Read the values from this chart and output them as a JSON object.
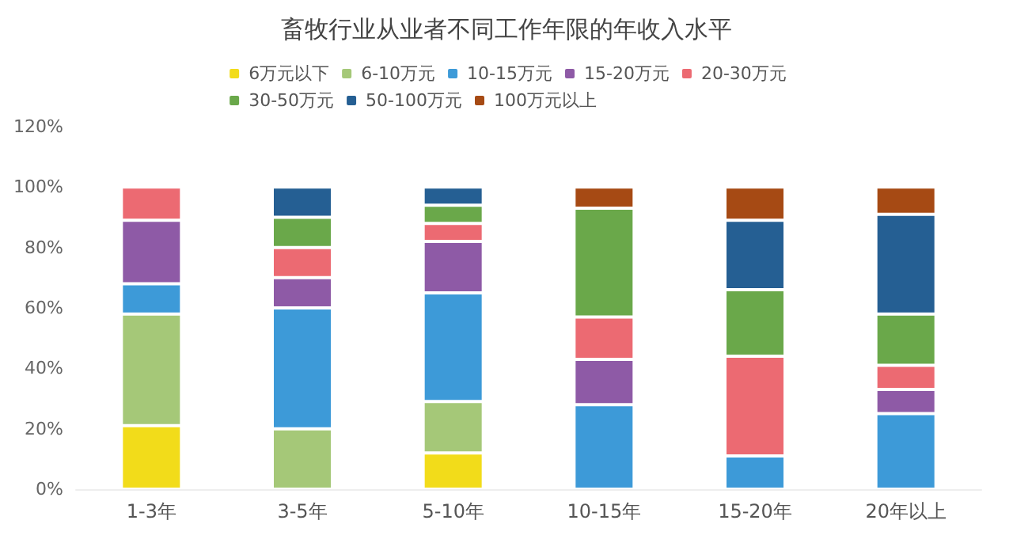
{
  "chart_data": {
    "type": "bar",
    "title": "畜牧行业从业者不同工作年限的年收入水平",
    "stacked": true,
    "legend": "top",
    "grid": false,
    "categories": [
      "1-3年",
      "3-5年",
      "5-10年",
      "10-15年",
      "15-20年",
      "20年以上"
    ],
    "ylim": [
      0,
      120
    ],
    "yticks": [
      {
        "value": 0,
        "label": "0%"
      },
      {
        "value": 20,
        "label": "20%"
      },
      {
        "value": 40,
        "label": "40%"
      },
      {
        "value": 60,
        "label": "60%"
      },
      {
        "value": 80,
        "label": "80%"
      },
      {
        "value": 100,
        "label": "100%"
      },
      {
        "value": 120,
        "label": "120%"
      }
    ],
    "series": [
      {
        "name": "6万元以下",
        "color": "#f2dc1a",
        "values": [
          21,
          0,
          12,
          0,
          0,
          0
        ]
      },
      {
        "name": "6-10万元",
        "color": "#a5c878",
        "values": [
          37,
          20,
          17,
          0,
          0,
          0
        ]
      },
      {
        "name": "10-15万元",
        "color": "#3d9ad8",
        "values": [
          10,
          40,
          36,
          28,
          11,
          25
        ]
      },
      {
        "name": "15-20万元",
        "color": "#8e5aa6",
        "values": [
          21,
          10,
          17,
          15,
          0,
          8
        ]
      },
      {
        "name": "20-30万元",
        "color": "#ec6a72",
        "values": [
          11,
          10,
          6,
          14,
          33,
          8
        ]
      },
      {
        "name": "30-50万元",
        "color": "#6aa84a",
        "values": [
          0,
          10,
          6,
          36,
          22,
          17
        ]
      },
      {
        "name": "50-100万元",
        "color": "#255f93",
        "values": [
          0,
          10,
          6,
          0,
          23,
          33
        ]
      },
      {
        "name": "100万元以上",
        "color": "#a64a14",
        "values": [
          0,
          0,
          0,
          7,
          11,
          9
        ]
      }
    ]
  }
}
